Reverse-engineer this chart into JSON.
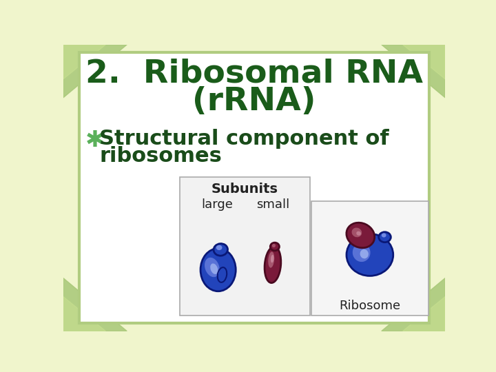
{
  "bg_color": "#f0f5cc",
  "slide_bg": "#ffffff",
  "title_line1": "2.  Ribosomal RNA",
  "title_line2": "(rRNA)",
  "title_color": "#1a5c1a",
  "bullet_symbol": "✱",
  "bullet_color": "#5ab05a",
  "bullet_text_line1": "Structural component of",
  "bullet_text_line2": "ribosomes",
  "bullet_text_color": "#1a4c1a",
  "title_fontsize": 34,
  "bullet_fontsize": 22,
  "border_color": "#b0cc80",
  "subunits_label": "Subunits",
  "large_label": "large",
  "small_label": "small",
  "ribosome_label": "Ribosome",
  "leaf_color": "#a8c878"
}
